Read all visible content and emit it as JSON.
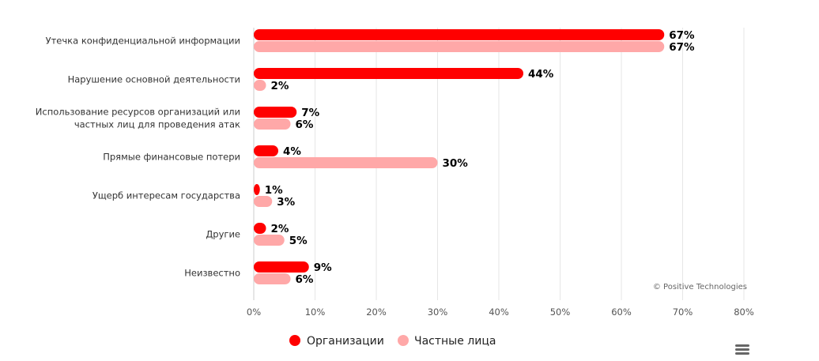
{
  "chart_data": {
    "type": "bar",
    "orientation": "horizontal",
    "categories": [
      [
        "Утечка конфиденциальной информации"
      ],
      [
        "Нарушение основной деятельности"
      ],
      [
        "Использование ресурсов организаций или",
        "частных лиц для проведения атак"
      ],
      [
        "Прямые финансовые потери"
      ],
      [
        "Ущерб интересам государства"
      ],
      [
        "Другие"
      ],
      [
        "Неизвестно"
      ]
    ],
    "series": [
      {
        "name": "Организации",
        "color": "#ff0000",
        "values": [
          67,
          44,
          7,
          4,
          1,
          2,
          9
        ]
      },
      {
        "name": "Частные лица",
        "color": "#ffa8a8",
        "values": [
          67,
          2,
          6,
          30,
          3,
          5,
          6
        ]
      }
    ],
    "xlim": [
      0,
      80
    ],
    "ticks": [
      0,
      10,
      20,
      30,
      40,
      50,
      60,
      70,
      80
    ],
    "tick_suffix": "%",
    "value_suffix": "%",
    "grid": true,
    "legend_position": "bottom-center"
  },
  "credit": "© Positive Technologies",
  "menu_icon": "hamburger-menu-icon"
}
